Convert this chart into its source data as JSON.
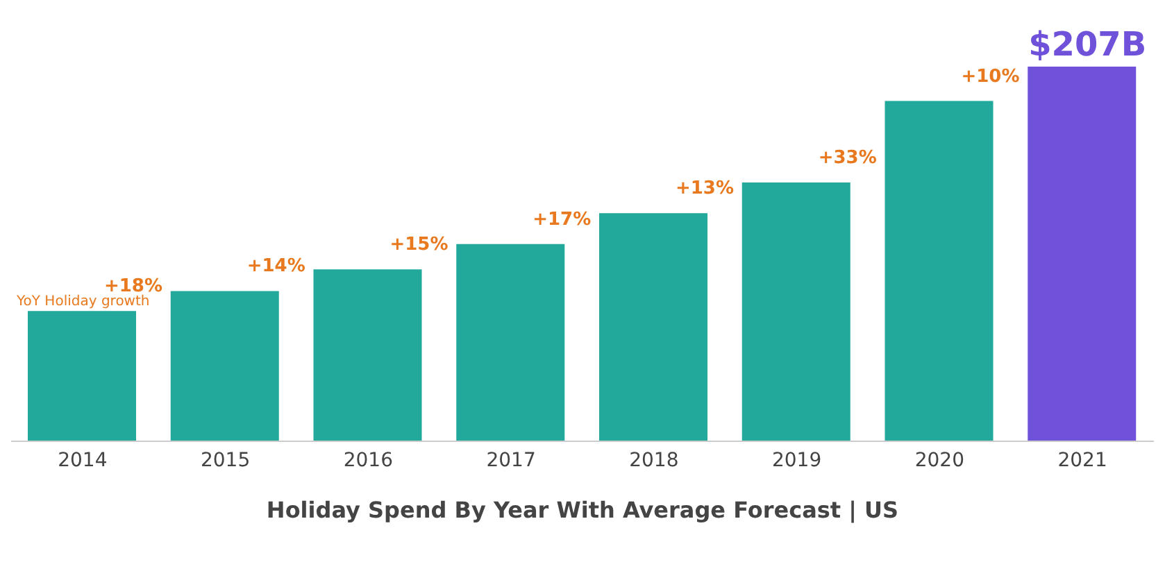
{
  "chart_data": {
    "type": "bar",
    "title": "Holiday Spend By Year With Average Forecast | US",
    "categories": [
      "2014",
      "2015",
      "2016",
      "2017",
      "2018",
      "2019",
      "2020",
      "2021"
    ],
    "values": [
      72,
      83,
      95,
      109,
      126,
      143,
      188,
      207
    ],
    "colors": [
      "#22a99b",
      "#22a99b",
      "#22a99b",
      "#22a99b",
      "#22a99b",
      "#22a99b",
      "#22a99b",
      "#6f52d9"
    ],
    "value_labels": [
      null,
      null,
      null,
      null,
      null,
      null,
      null,
      "$207B"
    ],
    "annotations": [
      "+18%",
      "+14%",
      "+15%",
      "+17%",
      "+13%",
      "+33%",
      "+10%",
      "YoY Holiday growth"
    ]
  }
}
